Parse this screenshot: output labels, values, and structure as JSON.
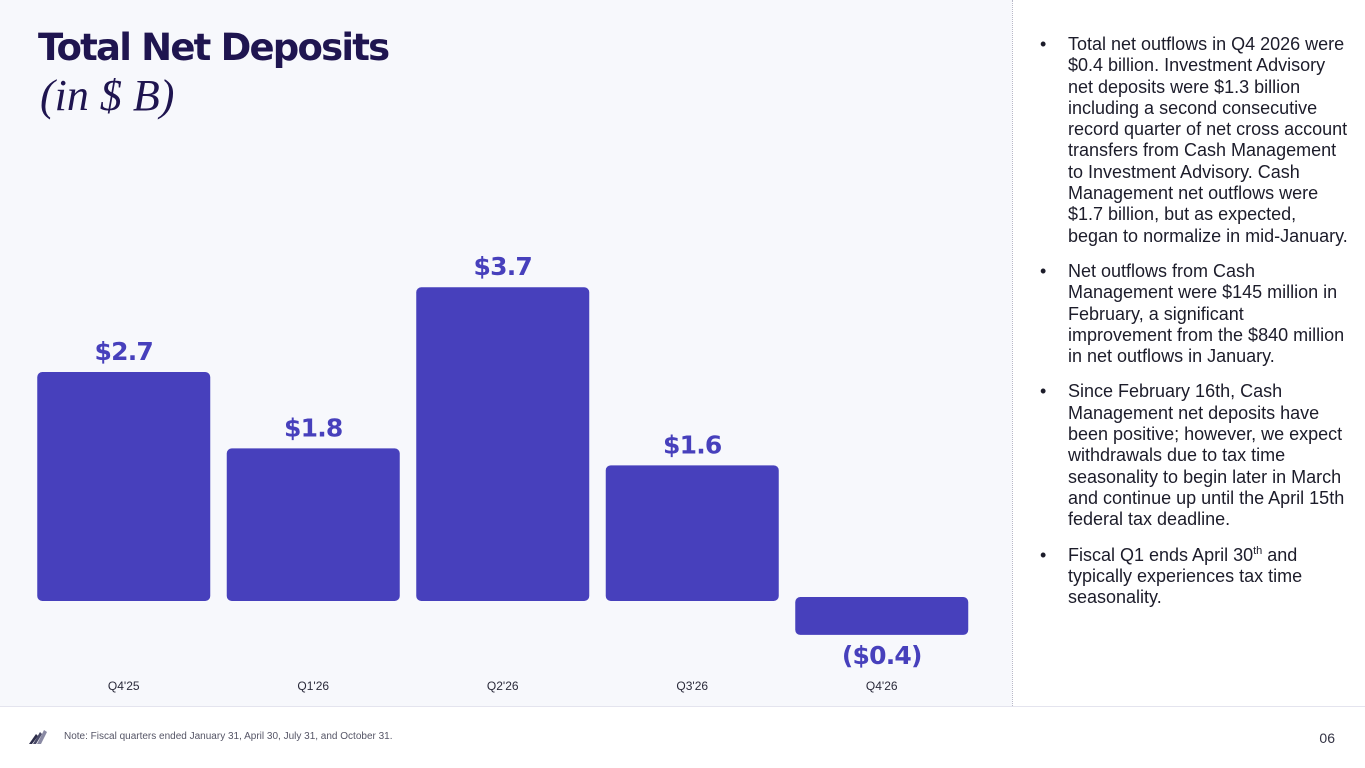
{
  "title": "Total Net Deposits",
  "subtitle": "(in $ B)",
  "colors": {
    "bar": "#4740bc",
    "value_label": "#4740bc"
  },
  "chart_data": {
    "type": "bar",
    "title": "Total Net Deposits",
    "subtitle": "(in $ B)",
    "categories": [
      "Q4'25",
      "Q1'26",
      "Q2'26",
      "Q3'26",
      "Q4'26"
    ],
    "values": [
      2.7,
      1.8,
      3.7,
      1.6,
      -0.4
    ],
    "value_labels": [
      "$2.7",
      "$1.8",
      "$3.7",
      "$1.6",
      "($0.4)"
    ],
    "grid": false,
    "legend": "none"
  },
  "bullets": [
    {
      "text": "Total net outflows in Q4 2026 were $0.4 billion. Investment Advisory net deposits were $1.3 billion including a second consecutive record quarter of net cross account transfers from Cash Management to Investment Advisory. Cash Management net outflows were $1.7 billion, but as expected, began to normalize in mid-January."
    },
    {
      "text": "Net outflows from Cash Management were $145 million in February, a significant improvement from the $840 million in net outflows in January."
    },
    {
      "text": "Since February 16th, Cash Management net deposits have been positive; however, we expect withdrawals due to tax time seasonality to begin later in March and continue up until the April 15th federal tax deadline."
    },
    {
      "text_before": "Fiscal Q1 ends April 30",
      "superscript": "th",
      "text_after": " and typically experiences tax time seasonality."
    }
  ],
  "footer": {
    "logo_icon": "company-logo-icon",
    "note": "Note: Fiscal quarters ended January 31, April 30, July 31, and October 31.",
    "page_number": "06"
  }
}
